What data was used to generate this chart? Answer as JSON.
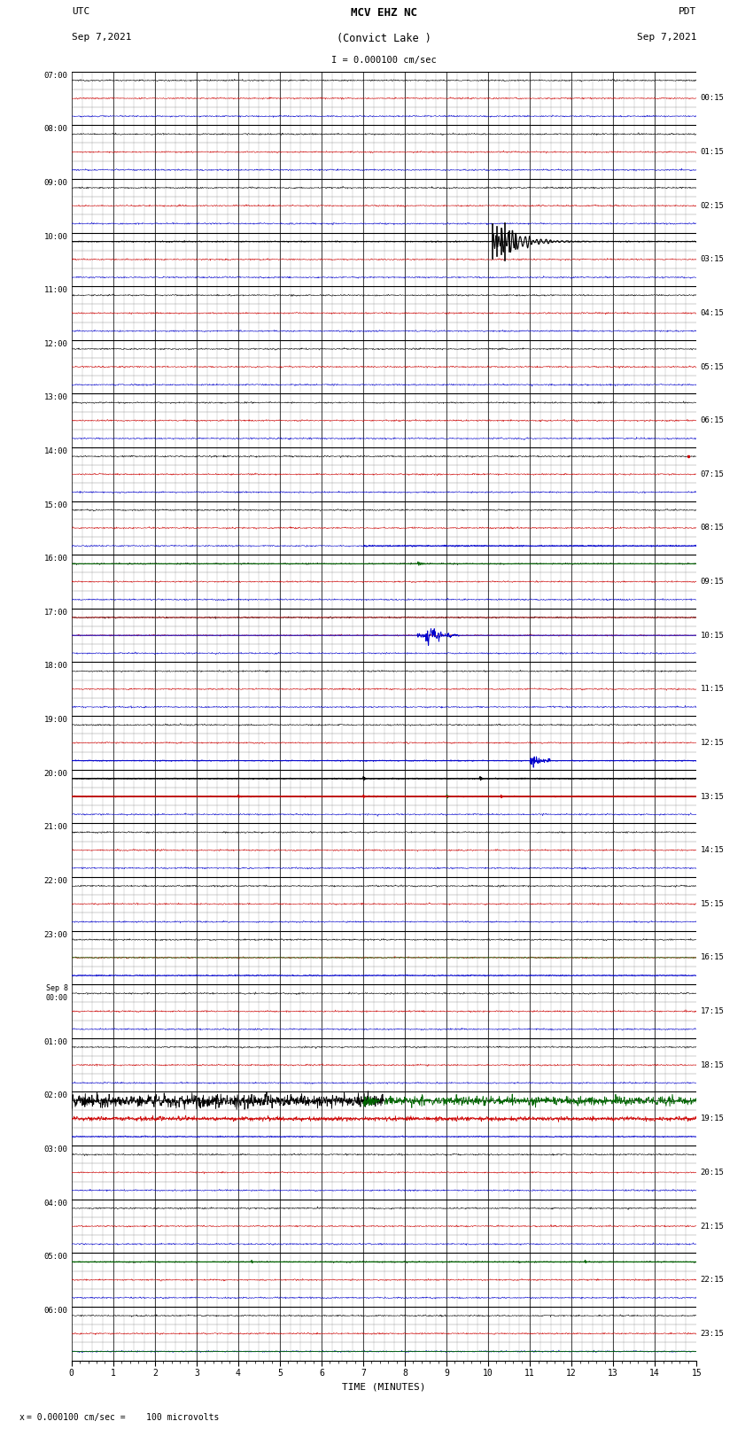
{
  "title_line1": "MCV EHZ NC",
  "title_line2": "(Convict Lake )",
  "title_line3": "I = 0.000100 cm/sec",
  "label_left_top1": "UTC",
  "label_left_top2": "Sep 7,2021",
  "label_right_top1": "PDT",
  "label_right_top2": "Sep 7,2021",
  "xlabel": "TIME (MINUTES)",
  "footer": "= 0.000100 cm/sec =    100 microvolts",
  "hour_labels_left": [
    "07:00",
    "08:00",
    "09:00",
    "10:00",
    "11:00",
    "12:00",
    "13:00",
    "14:00",
    "15:00",
    "16:00",
    "17:00",
    "18:00",
    "19:00",
    "20:00",
    "21:00",
    "22:00",
    "23:00",
    "Sep 8\n00:00",
    "01:00",
    "02:00",
    "03:00",
    "04:00",
    "05:00",
    "06:00"
  ],
  "hour_labels_right": [
    "00:15",
    "01:15",
    "02:15",
    "03:15",
    "04:15",
    "05:15",
    "06:15",
    "07:15",
    "08:15",
    "09:15",
    "10:15",
    "11:15",
    "12:15",
    "13:15",
    "14:15",
    "15:15",
    "16:15",
    "17:15",
    "18:15",
    "19:15",
    "20:15",
    "21:15",
    "22:15",
    "23:15"
  ],
  "n_hours": 24,
  "traces_per_hour": 3,
  "n_cols": 15,
  "bg_color": "#ffffff",
  "major_grid_color": "#000000",
  "minor_grid_color": "#888888",
  "color_black": "#000000",
  "color_red": "#cc0000",
  "color_blue": "#0000cc",
  "color_green": "#006600",
  "fig_width": 8.5,
  "fig_height": 16.13
}
